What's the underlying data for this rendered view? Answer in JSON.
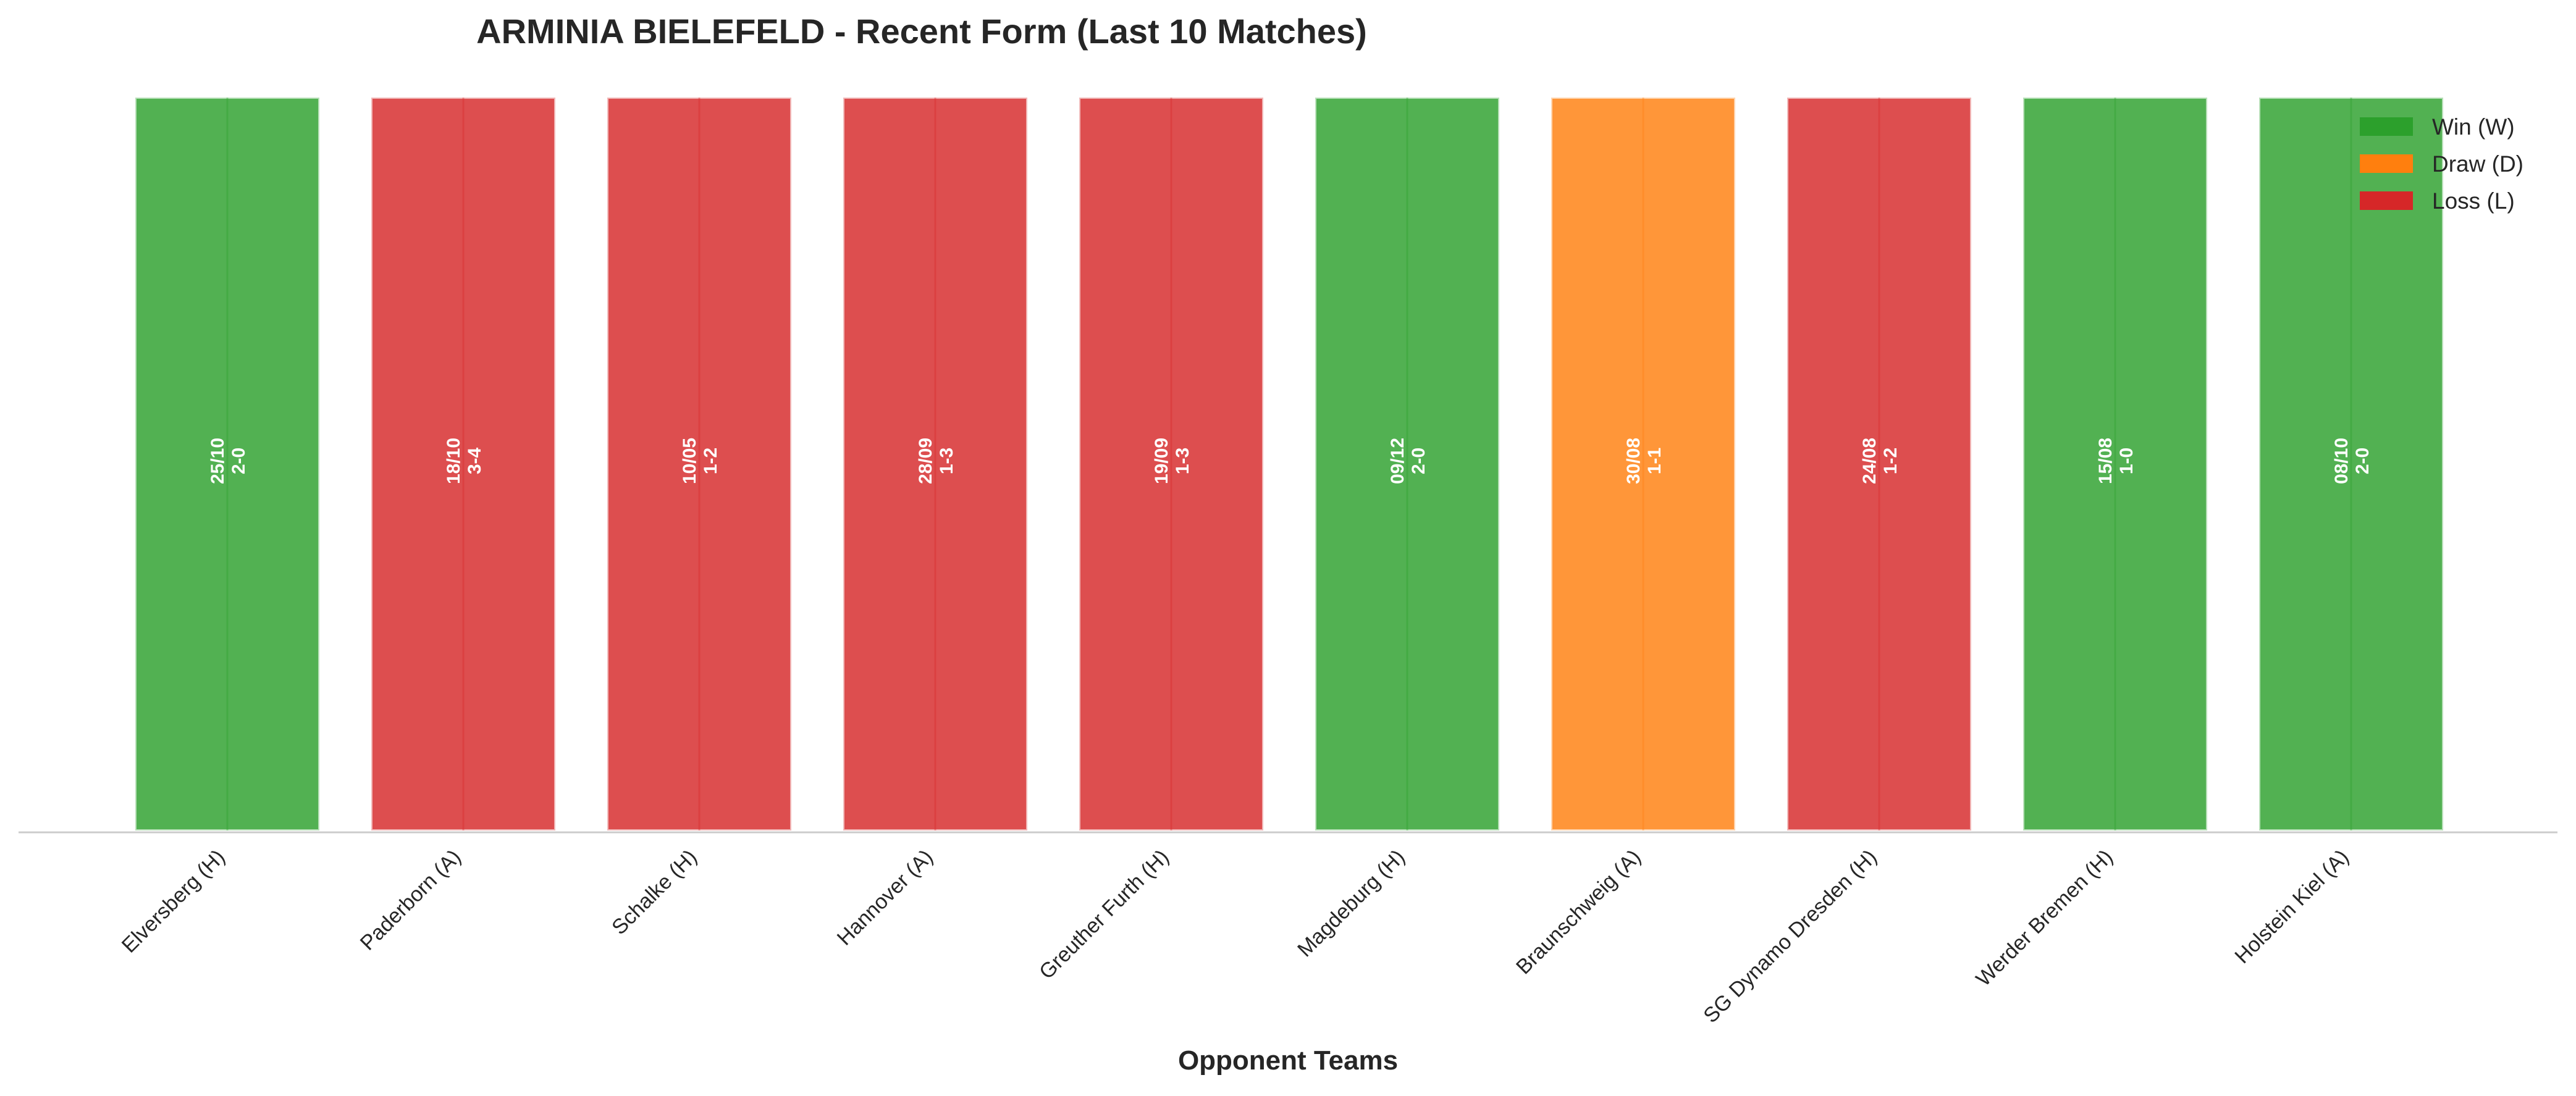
{
  "chart_data": {
    "type": "bar",
    "title": "ARMINIA BIELEFELD - Recent Form (Last 10 Matches)",
    "xlabel": "Opponent Teams",
    "ylabel": "",
    "ylim": [
      0,
      1
    ],
    "grid": false,
    "legend_position": "top-right",
    "legend": [
      {
        "key": "W",
        "label": "Win (W)",
        "color": "#2ca02c"
      },
      {
        "key": "D",
        "label": "Draw (D)",
        "color": "#ff7f0e"
      },
      {
        "key": "L",
        "label": "Loss (L)",
        "color": "#d62728"
      }
    ],
    "categories": [
      "Elversberg (H)",
      "Paderborn (A)",
      "Schalke (H)",
      "Hannover (A)",
      "Greuther Furth (H)",
      "Magdeburg (H)",
      "Braunschweig (A)",
      "SG Dynamo Dresden (H)",
      "Werder Bremen (H)",
      "Holstein Kiel (A)"
    ],
    "values": [
      1,
      1,
      1,
      1,
      1,
      1,
      1,
      1,
      1,
      1
    ],
    "results": [
      "W",
      "L",
      "L",
      "L",
      "L",
      "W",
      "D",
      "L",
      "W",
      "W"
    ],
    "dates": [
      "25/10",
      "18/10",
      "10/05",
      "28/09",
      "19/09",
      "09/12",
      "30/08",
      "24/08",
      "15/08",
      "08/10"
    ],
    "scores": [
      "2-0",
      "3-4",
      "1-2",
      "1-3",
      "1-3",
      "2-0",
      "1-1",
      "1-2",
      "1-0",
      "2-0"
    ]
  }
}
